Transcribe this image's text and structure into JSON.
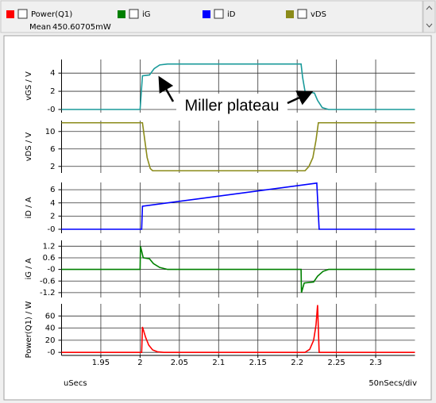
{
  "legend_mean": {
    "label": "Mean",
    "value": "450.60705mW"
  },
  "chart_data": [
    {
      "type": "line",
      "ylabel": "vGS / V",
      "annotation": "Miller plateau",
      "x": [
        1.9,
        2.0,
        2.003,
        2.012,
        2.018,
        2.025,
        2.035,
        2.205,
        2.207,
        2.21,
        2.222,
        2.226,
        2.232,
        2.24,
        2.35
      ],
      "series": [
        {
          "color": "#1a9a9a",
          "values": [
            0,
            0,
            3.7,
            3.8,
            4.5,
            4.9,
            5,
            5,
            3.5,
            2.0,
            1.8,
            1.0,
            0.2,
            0,
            0
          ]
        }
      ],
      "xlim": [
        1.9,
        2.35
      ],
      "ylim": [
        -0.35,
        5.5
      ],
      "yticks": [
        {
          "value": 0,
          "label": "-0"
        },
        2,
        4
      ],
      "grid": true
    },
    {
      "type": "line",
      "ylabel": "vDS / V",
      "x": [
        1.9,
        2.003,
        2.006,
        2.009,
        2.013,
        2.016,
        2.21,
        2.215,
        2.22,
        2.224,
        2.227,
        2.35
      ],
      "series": [
        {
          "name": "vDS",
          "color": "#8b8b1a",
          "values": [
            12,
            12,
            8,
            4,
            1.5,
            1,
            1,
            2,
            4,
            8,
            12,
            12
          ]
        }
      ],
      "xlim": [
        1.9,
        2.35
      ],
      "ylim": [
        0.5,
        12.5
      ],
      "yticks": [
        2,
        6,
        10
      ],
      "grid": true
    },
    {
      "type": "line",
      "ylabel": "iD / A",
      "x": [
        1.9,
        2.002,
        2.003,
        2.225,
        2.228,
        2.35
      ],
      "series": [
        {
          "name": "iD",
          "color": "#0000ff",
          "values": [
            0,
            0,
            3.5,
            7,
            0,
            0
          ]
        }
      ],
      "xlim": [
        1.9,
        2.35
      ],
      "ylim": [
        -0.6,
        7.1
      ],
      "yticks": [
        {
          "value": 0,
          "label": "-0"
        },
        2,
        4,
        6
      ],
      "grid": true
    },
    {
      "type": "line",
      "ylabel": "iG / A",
      "x": [
        1.9,
        2.0,
        2.0005,
        2.004,
        2.012,
        2.017,
        2.025,
        2.035,
        2.205,
        2.2055,
        2.209,
        2.221,
        2.226,
        2.233,
        2.24,
        2.35
      ],
      "series": [
        {
          "name": "iG",
          "color": "#008000",
          "values": [
            0,
            0,
            1.2,
            0.6,
            0.55,
            0.3,
            0.1,
            0,
            0,
            -1.2,
            -0.7,
            -0.65,
            -0.35,
            -0.1,
            0,
            0
          ]
        }
      ],
      "xlim": [
        1.9,
        2.35
      ],
      "ylim": [
        -1.45,
        1.5
      ],
      "yticks": [
        -1.2,
        -0.6,
        {
          "value": 0,
          "label": "-0"
        },
        0.6,
        1.2
      ],
      "grid": true
    },
    {
      "type": "line",
      "ylabel": "Power(Q1) / W",
      "xlabel": "uSecs",
      "x_scale_label": "50nSecs/div",
      "x": [
        1.9,
        2.002,
        2.003,
        2.007,
        2.011,
        2.016,
        2.022,
        2.03,
        2.21,
        2.216,
        2.221,
        2.224,
        2.226,
        2.228,
        2.35
      ],
      "series": [
        {
          "name": "Power(Q1)",
          "color": "#ff0000",
          "values": [
            0,
            0,
            42,
            25,
            12,
            4,
            1,
            0,
            0,
            5,
            20,
            45,
            78,
            0,
            0
          ]
        }
      ],
      "xlim": [
        1.9,
        2.35
      ],
      "ylim": [
        -5,
        80
      ],
      "yticks": [
        {
          "value": 0,
          "label": "-0"
        },
        20,
        40,
        60
      ],
      "xticks": [
        1.95,
        2,
        2.05,
        2.1,
        2.15,
        2.2,
        2.25,
        2.3
      ],
      "grid": true
    }
  ]
}
